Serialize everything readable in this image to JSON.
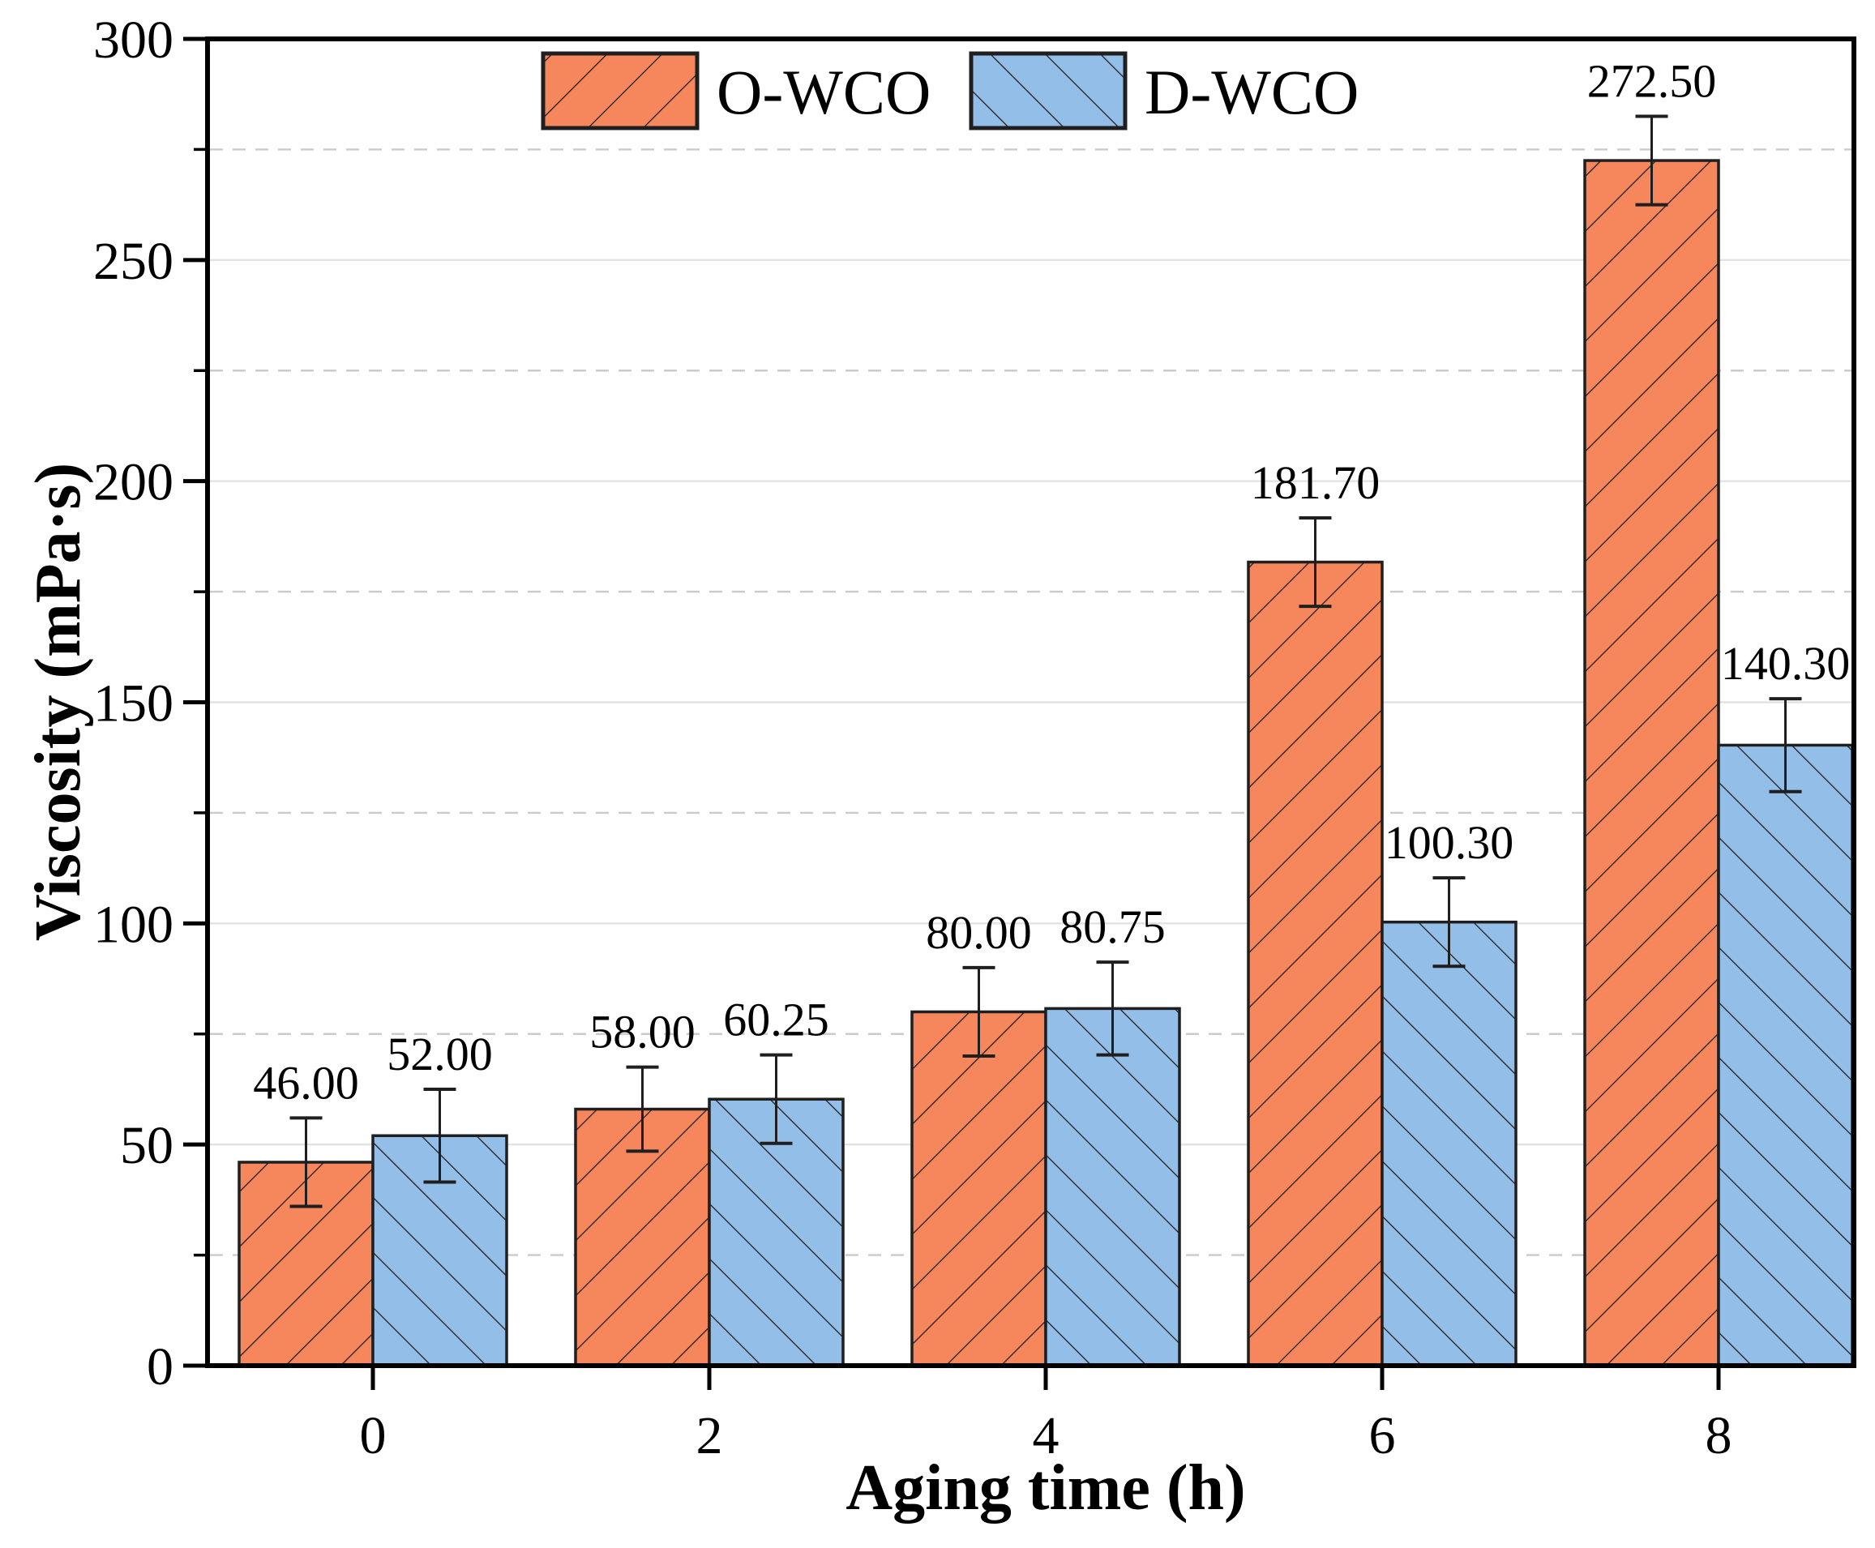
{
  "chart_data": {
    "type": "bar",
    "categories": [
      "0",
      "2",
      "4",
      "6",
      "8"
    ],
    "series": [
      {
        "name": "O-WCO",
        "color": "#F6875C",
        "hatch": "/",
        "values": [
          46.0,
          58.0,
          80.0,
          181.7,
          272.5
        ],
        "errors": [
          10,
          9.5,
          10,
          10,
          10
        ],
        "labels": [
          "46.00",
          "58.00",
          "80.00",
          "181.70",
          "272.50"
        ]
      },
      {
        "name": "D-WCO",
        "color": "#93BEE8",
        "hatch": "\\",
        "values": [
          52.0,
          60.25,
          80.75,
          100.3,
          140.3
        ],
        "errors": [
          10.5,
          10,
          10.5,
          10,
          10.5
        ],
        "labels": [
          "52.00",
          "60.25",
          "80.75",
          "100.30",
          "140.30"
        ]
      }
    ],
    "title": "",
    "xlabel": "Aging time (h)",
    "ylabel": "Viscosity (mPa·s)",
    "ylim": [
      0,
      300
    ],
    "ytick_step": 50,
    "yminor_step": 25,
    "yticks": [
      "0",
      "50",
      "100",
      "150",
      "200",
      "250",
      "300"
    ],
    "grid": {
      "major": "solid",
      "minor": "dashed"
    },
    "legend_position": "top-center",
    "colors": {
      "axis": "#000000",
      "bar_edge": "#1f1f1f",
      "grid_major": "#E2E2E2",
      "grid_minor": "#CBCBCB",
      "text": "#000000"
    }
  }
}
